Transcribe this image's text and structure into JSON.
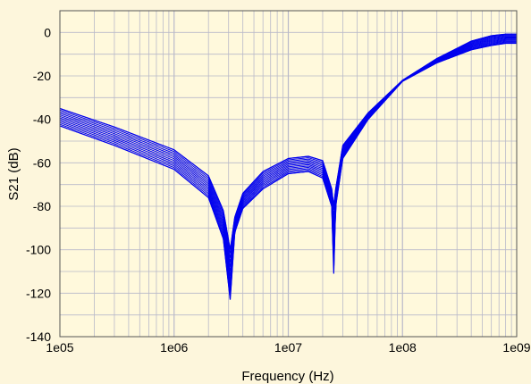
{
  "chart_data": {
    "type": "line",
    "title": "",
    "xlabel": "Frequency (Hz)",
    "ylabel": "S21 (dB)",
    "x_scale": "log",
    "xlim": [
      100000,
      1000000000
    ],
    "ylim": [
      -140,
      10
    ],
    "x_ticks": [
      "1e05",
      "1e06",
      "1e07",
      "1e08",
      "1e09"
    ],
    "y_ticks": [
      0,
      -20,
      -40,
      -60,
      -80,
      -100,
      -120,
      -140
    ],
    "grid": true,
    "legend": "none",
    "colors": {
      "background": "#fdf6dc",
      "plot_background": "#fff9dc",
      "grid": "#b9b9c9",
      "series": "#0000ee"
    },
    "band": {
      "series_count": 12,
      "x": [
        100000,
        300000,
        1000000,
        2000000,
        2700000,
        3100000,
        3400000,
        4000000,
        6000000,
        10000000,
        15000000,
        20000000,
        24000000,
        25000000,
        26000000,
        30000000,
        50000000,
        100000000,
        200000000,
        400000000,
        600000000,
        800000000,
        1000000000
      ],
      "upper": [
        -35,
        -43.5,
        -54,
        -66,
        -82,
        -100,
        -85,
        -74,
        -64,
        -58,
        -57,
        -59,
        -72,
        -80,
        -72,
        -52,
        -37,
        -22,
        -12,
        -4,
        -1.5,
        -0.8,
        -0.8
      ],
      "lower": [
        -43,
        -52,
        -63,
        -76,
        -95,
        -123,
        -92,
        -81,
        -72,
        -65,
        -64,
        -67,
        -80,
        -111,
        -80,
        -58,
        -40,
        -22.5,
        -14,
        -8,
        -6,
        -5,
        -5
      ]
    }
  }
}
